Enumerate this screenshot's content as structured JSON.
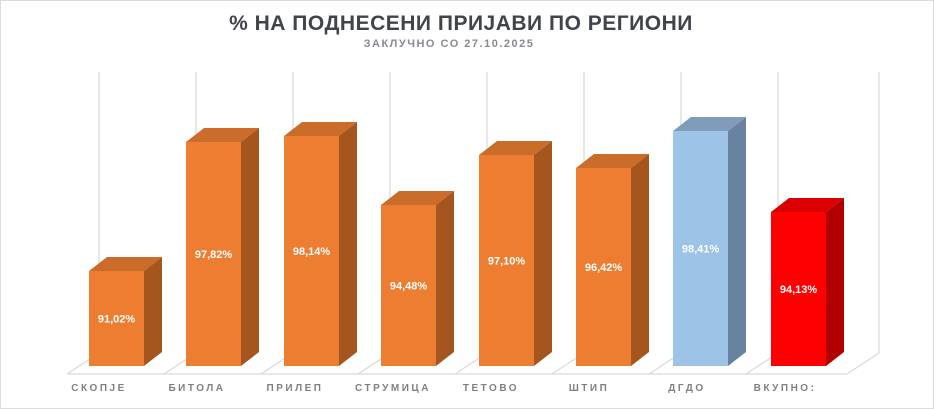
{
  "header": {
    "title": "% НА ПОДНЕСЕНИ ПРИЈАВИ ПО РЕГИОНИ",
    "subtitle": "ЗАКЛУЧНО СО 27.10.2025"
  },
  "chart_data": {
    "type": "bar",
    "projection": "3d-column",
    "title": "% НА ПОДНЕСЕНИ ПРИЈАВИ ПО РЕГИОНИ",
    "subtitle": "ЗАКЛУЧНО СО 27.10.2025",
    "categories": [
      "СКОПЈЕ",
      "БИТОЛА",
      "ПРИЛЕП",
      "СТРУМИЦА",
      "ТЕТОВО",
      "ШТИП",
      "ДГДО",
      "ВКУПНО:"
    ],
    "values": [
      91.02,
      97.82,
      98.14,
      94.48,
      97.1,
      96.42,
      98.41,
      94.13
    ],
    "data_labels": [
      "91,02%",
      "97,82%",
      "98,14%",
      "94,48%",
      "97,10%",
      "96,42%",
      "98,41%",
      "94,13%"
    ],
    "xlabel": "",
    "ylabel": "",
    "ylim": [
      86,
      101.5
    ],
    "legend": "none",
    "gridlines": "vertical-back-wall",
    "bar_colors": [
      {
        "front": "#ED7D31",
        "top": "#CB6D2A",
        "side": "#A4561E"
      },
      {
        "front": "#ED7D31",
        "top": "#CB6D2A",
        "side": "#A4561E"
      },
      {
        "front": "#ED7D31",
        "top": "#CB6D2A",
        "side": "#A4561E"
      },
      {
        "front": "#ED7D31",
        "top": "#CB6D2A",
        "side": "#A4561E"
      },
      {
        "front": "#ED7D31",
        "top": "#CB6D2A",
        "side": "#A4561E"
      },
      {
        "front": "#ED7D31",
        "top": "#CB6D2A",
        "side": "#A4561E"
      },
      {
        "front": "#9DC3E6",
        "top": "#7F9CBB",
        "side": "#68829F"
      },
      {
        "front": "#FE0000",
        "top": "#DB0000",
        "side": "#B20000"
      }
    ]
  },
  "colors": {
    "title_text": "#41454b",
    "subtitle_text": "#868b92",
    "axis_label": "#808080",
    "data_label": "#ffffff",
    "gridline": "#d9d9d9",
    "frame_border": "#dddddd",
    "background": "#ffffff"
  }
}
